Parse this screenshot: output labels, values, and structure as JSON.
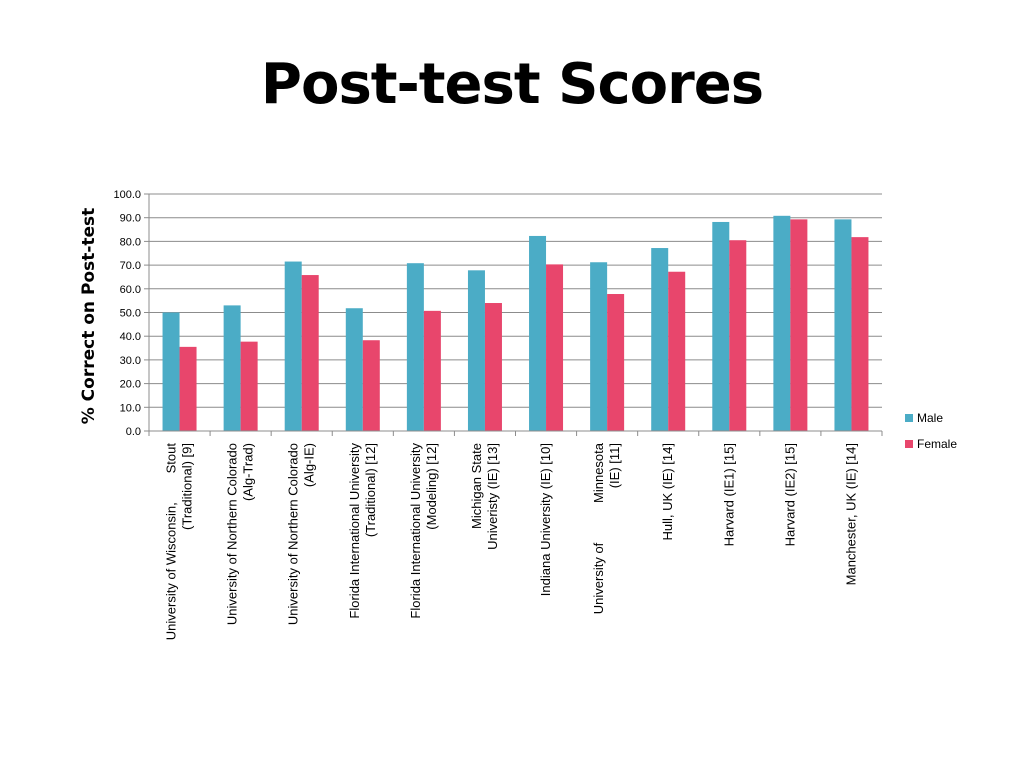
{
  "slide": {
    "title": "Post-test Scores"
  },
  "chart_data": {
    "type": "bar",
    "title": "",
    "xlabel": "",
    "ylabel": "% Correct on Post-test",
    "ylim": [
      0,
      100
    ],
    "yticks": [
      "0.0",
      "10.0",
      "20.0",
      "30.0",
      "40.0",
      "50.0",
      "60.0",
      "70.0",
      "80.0",
      "90.0",
      "100.0"
    ],
    "grid": true,
    "legend_position": "right",
    "categories": [
      [
        "University of Wisconsin,        Stout",
        "(Traditional) [9]"
      ],
      [
        "University of Northern Colorado",
        "(Alg-Trad)"
      ],
      [
        "University of Northern Colorado",
        "(Alg-IE)"
      ],
      [
        "Florida International University",
        "(Traditional) [12]"
      ],
      [
        "Florida International University",
        "(Modeling) [12]"
      ],
      [
        "Michigan State",
        "Univeristy (IE) [13]"
      ],
      [
        "Indiana University (IE) [10]"
      ],
      [
        "University of           Minnesota",
        "(IE) [11]"
      ],
      [
        "Hull, UK (IE) [14]"
      ],
      [
        "Harvard (IE1) [15]"
      ],
      [
        "Harvard (IE2) [15]"
      ],
      [
        "Manchester, UK (IE) [14]"
      ]
    ],
    "series": [
      {
        "name": "Male",
        "color": "#4bacc6",
        "values": [
          50.0,
          53.0,
          71.5,
          51.8,
          70.8,
          67.8,
          82.3,
          71.2,
          77.2,
          88.2,
          90.8,
          89.3
        ]
      },
      {
        "name": "Female",
        "color": "#e8466c",
        "values": [
          35.5,
          37.7,
          65.8,
          38.3,
          50.7,
          54.0,
          70.3,
          57.8,
          67.2,
          80.5,
          89.3,
          81.8
        ]
      }
    ]
  }
}
